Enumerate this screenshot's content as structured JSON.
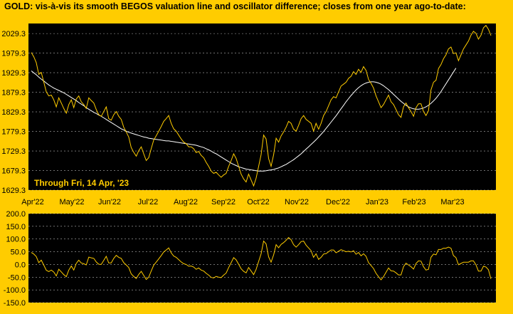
{
  "title": "GOLD:  vis-à-vis its smooth BEGOS valuation line and oscillator difference; closes from one year ago-to-date:",
  "annotation": "Through Fri, 14 Apr, '23",
  "colors": {
    "background": "#ffcc00",
    "plot_area": "#000000",
    "price_line": "#ffcc00",
    "valuation_line": "#ffffff",
    "gridline": "#ffffff",
    "axis_text": "#000000",
    "annotation_text": "#ffcc00"
  },
  "chart_data": [
    {
      "type": "line",
      "name": "price-panel",
      "x_tick_labels": [
        "Apr'22",
        "May'22",
        "Jun'22",
        "Jul'22",
        "Aug'22",
        "Sep'22",
        "Oct'22",
        "Nov'22",
        "Dec'22",
        "Jan'23",
        "Feb'23",
        "Mar'23"
      ],
      "y_ticks": [
        1629.3,
        1679.3,
        1729.3,
        1779.3,
        1829.3,
        1879.3,
        1929.3,
        1979.3,
        2029.3
      ],
      "y_tick_labels": [
        "1629.3",
        "1679.3",
        "1729.3",
        "1779.3",
        "1829.3",
        "1879.3",
        "1929.3",
        "1979.3",
        "2029.3"
      ],
      "ylim": [
        1629.3,
        2055
      ],
      "grid": "horizontal dashed",
      "series": [
        {
          "role": "closes",
          "values": [
            1981,
            1970,
            1955,
            1925,
            1930,
            1905,
            1880,
            1870,
            1872,
            1860,
            1842,
            1865,
            1852,
            1838,
            1826,
            1848,
            1860,
            1840,
            1862,
            1870,
            1855,
            1848,
            1838,
            1865,
            1858,
            1852,
            1835,
            1822,
            1818,
            1830,
            1842,
            1812,
            1808,
            1822,
            1830,
            1818,
            1810,
            1790,
            1778,
            1765,
            1738,
            1726,
            1716,
            1730,
            1740,
            1722,
            1705,
            1712,
            1735,
            1757,
            1768,
            1780,
            1792,
            1805,
            1812,
            1820,
            1800,
            1786,
            1780,
            1770,
            1760,
            1752,
            1748,
            1740,
            1740,
            1735,
            1725,
            1728,
            1718,
            1712,
            1700,
            1690,
            1678,
            1672,
            1675,
            1668,
            1662,
            1668,
            1672,
            1690,
            1705,
            1722,
            1710,
            1690,
            1670,
            1658,
            1650,
            1670,
            1655,
            1640,
            1660,
            1690,
            1720,
            1770,
            1760,
            1710,
            1690,
            1720,
            1762,
            1752,
            1768,
            1778,
            1790,
            1805,
            1800,
            1785,
            1780,
            1795,
            1812,
            1820,
            1810,
            1805,
            1800,
            1780,
            1800,
            1785,
            1800,
            1820,
            1830,
            1845,
            1860,
            1868,
            1865,
            1880,
            1895,
            1900,
            1905,
            1915,
            1920,
            1932,
            1925,
            1938,
            1930,
            1945,
            1935,
            1912,
            1902,
            1890,
            1870,
            1855,
            1840,
            1848,
            1860,
            1872,
            1855,
            1848,
            1835,
            1822,
            1815,
            1842,
            1852,
            1840,
            1830,
            1818,
            1840,
            1850,
            1850,
            1830,
            1820,
            1832,
            1885,
            1905,
            1910,
            1940,
            1950,
            1965,
            1975,
            1990,
            1995,
            1978,
            1980,
            1960,
            1975,
            1990,
            2000,
            2010,
            2025,
            2035,
            2030,
            2015,
            2025,
            2044,
            2050,
            2040,
            2024
          ]
        },
        {
          "role": "smooth valuation line",
          "values": [
            1934,
            1929,
            1924,
            1918,
            1913,
            1908,
            1903,
            1898,
            1894,
            1890,
            1887,
            1884,
            1881,
            1878,
            1874,
            1870,
            1866,
            1862,
            1858,
            1853,
            1849,
            1845,
            1840,
            1836,
            1832,
            1828,
            1825,
            1821,
            1818,
            1814,
            1810,
            1806,
            1802,
            1798,
            1794,
            1790,
            1786,
            1783,
            1780,
            1777,
            1775,
            1773,
            1771,
            1769,
            1767,
            1765,
            1764,
            1762,
            1761,
            1760,
            1759,
            1758,
            1757,
            1756,
            1755,
            1755,
            1754,
            1753,
            1752,
            1751,
            1750,
            1749,
            1748,
            1747,
            1746,
            1745,
            1744,
            1742,
            1740,
            1738,
            1735,
            1732,
            1729,
            1725,
            1722,
            1718,
            1714,
            1710,
            1706,
            1702,
            1698,
            1695,
            1692,
            1689,
            1687,
            1685,
            1683,
            1682,
            1681,
            1680,
            1679,
            1678,
            1678,
            1678,
            1679,
            1680,
            1681,
            1682,
            1684,
            1686,
            1689,
            1692,
            1695,
            1699,
            1703,
            1707,
            1712,
            1717,
            1722,
            1728,
            1734,
            1740,
            1746,
            1752,
            1758,
            1765,
            1772,
            1779,
            1787,
            1795,
            1803,
            1811,
            1819,
            1828,
            1837,
            1846,
            1855,
            1863,
            1871,
            1878,
            1885,
            1891,
            1896,
            1900,
            1903,
            1905,
            1906,
            1906,
            1905,
            1903,
            1900,
            1896,
            1891,
            1886,
            1880,
            1874,
            1868,
            1862,
            1856,
            1851,
            1846,
            1842,
            1839,
            1837,
            1836,
            1836,
            1837,
            1839,
            1842,
            1846,
            1851,
            1857,
            1864,
            1872,
            1881,
            1891,
            1901,
            1911,
            1921,
            1931,
            1941
          ]
        }
      ]
    },
    {
      "type": "line",
      "name": "oscillator-panel",
      "y_ticks": [
        -150,
        -100,
        -50,
        0,
        50,
        100,
        150,
        200
      ],
      "y_tick_labels": [
        "-150.0",
        "-100.0",
        "-50.0",
        "0.0",
        "50.0",
        "100.0",
        "150.0",
        "200.0"
      ],
      "ylim": [
        -150,
        200
      ],
      "grid": "horizontal dashed",
      "series": [
        {
          "role": "oscillator difference",
          "values": [
            47,
            41,
            31,
            7,
            17,
            -3,
            -23,
            -28,
            -22,
            -30,
            -45,
            -19,
            -29,
            -40,
            -48,
            -22,
            -6,
            -22,
            4,
            17,
            6,
            3,
            -2,
            29,
            26,
            24,
            10,
            1,
            0,
            16,
            32,
            6,
            6,
            24,
            36,
            28,
            24,
            7,
            -2,
            -12,
            -37,
            -47,
            -55,
            -39,
            -27,
            -43,
            -59,
            -50,
            -26,
            -3,
            9,
            22,
            35,
            49,
            57,
            65,
            46,
            33,
            28,
            19,
            10,
            3,
            0,
            -7,
            -6,
            -10,
            -19,
            -14,
            -22,
            -26,
            -35,
            -42,
            -51,
            -53,
            -47,
            -50,
            -52,
            -42,
            -34,
            -12,
            7,
            27,
            18,
            1,
            -17,
            -27,
            -33,
            -12,
            -26,
            -40,
            -19,
            12,
            42,
            92,
            81,
            30,
            9,
            38,
            78,
            66,
            79,
            86,
            95,
            106,
            97,
            78,
            68,
            78,
            90,
            92,
            76,
            65,
            54,
            28,
            42,
            20,
            28,
            41,
            43,
            50,
            57,
            57,
            46,
            52,
            58,
            54,
            50,
            52,
            49,
            54,
            40,
            47,
            34,
            42,
            32,
            7,
            -4,
            -16,
            -35,
            -48,
            -60,
            -48,
            -31,
            -14,
            -25,
            -26,
            -33,
            -41,
            -41,
            -9,
            5,
            -2,
            -9,
            -18,
            4,
            14,
            13,
            -9,
            -22,
            -19,
            28,
            41,
            38,
            59,
            59,
            64,
            64,
            68,
            64,
            35,
            27,
            -1,
            4,
            9,
            9,
            9,
            14,
            14,
            -1,
            -26,
            -26,
            -7,
            -10,
            -21,
            -57
          ]
        }
      ]
    }
  ]
}
